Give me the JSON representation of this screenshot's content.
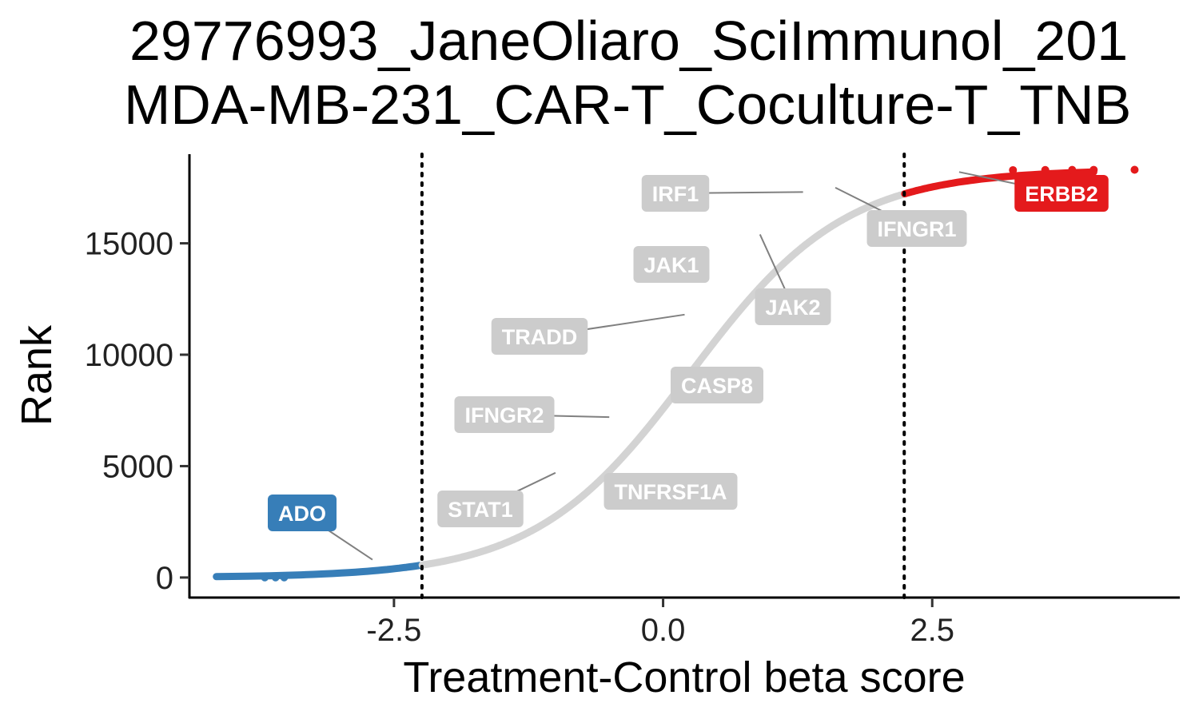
{
  "chart_data": {
    "type": "scatter",
    "title": [
      "29776993_JaneOliaro_SciImmunol_201",
      "MDA-MB-231_CAR-T_Coculture-T_TNB"
    ],
    "xlabel": "Treatment-Control beta score",
    "ylabel": "Rank",
    "xlim": [
      -4.4,
      4.8
    ],
    "ylim": [
      -900,
      19000
    ],
    "x_ticks": [
      {
        "value": -2.5,
        "label": "-2.5"
      },
      {
        "value": 0.0,
        "label": "0.0"
      },
      {
        "value": 2.5,
        "label": "2.5"
      }
    ],
    "y_ticks": [
      {
        "value": 0,
        "label": "0"
      },
      {
        "value": 5000,
        "label": "5000"
      },
      {
        "value": 10000,
        "label": "10000"
      },
      {
        "value": 15000,
        "label": "15000"
      }
    ],
    "thresholds": [
      -2.24,
      2.24
    ],
    "grid": false,
    "legend": "none",
    "colors": {
      "negative": "#377EB8",
      "neutral": "#D3D3D3",
      "positive": "#E41A1C",
      "label_neutral": "#CCCCCC"
    },
    "curve": {
      "n_genes": 18300,
      "center": 0.25,
      "scale": 0.72
    },
    "outliers": {
      "positive": [
        {
          "x": 3.25,
          "y": 18285
        },
        {
          "x": 3.55,
          "y": 18290
        },
        {
          "x": 3.8,
          "y": 18295
        },
        {
          "x": 4.0,
          "y": 18298
        },
        {
          "x": 4.38,
          "y": 18300
        }
      ]
    },
    "labels": [
      {
        "gene": "ADO",
        "x": -2.7,
        "y": 800,
        "group": "negative"
      },
      {
        "gene": "STAT1",
        "x": -1.0,
        "y": 4700,
        "group": "neutral"
      },
      {
        "gene": "TNFRSF1A",
        "x": -0.45,
        "y": 6900,
        "group": "neutral"
      },
      {
        "gene": "IFNGR2",
        "x": -0.5,
        "y": 7200,
        "group": "neutral"
      },
      {
        "gene": "CASP8",
        "x": 0.1,
        "y": 10000,
        "group": "neutral"
      },
      {
        "gene": "TRADD",
        "x": 0.2,
        "y": 11800,
        "group": "neutral"
      },
      {
        "gene": "JAK1",
        "x": 0.55,
        "y": 14800,
        "group": "neutral"
      },
      {
        "gene": "JAK2",
        "x": 0.9,
        "y": 15400,
        "group": "neutral"
      },
      {
        "gene": "IRF1",
        "x": 1.3,
        "y": 17300,
        "group": "neutral"
      },
      {
        "gene": "IFNGR1",
        "x": 1.6,
        "y": 17500,
        "group": "neutral"
      },
      {
        "gene": "ERBB2",
        "x": 2.75,
        "y": 18200,
        "group": "positive"
      }
    ]
  }
}
